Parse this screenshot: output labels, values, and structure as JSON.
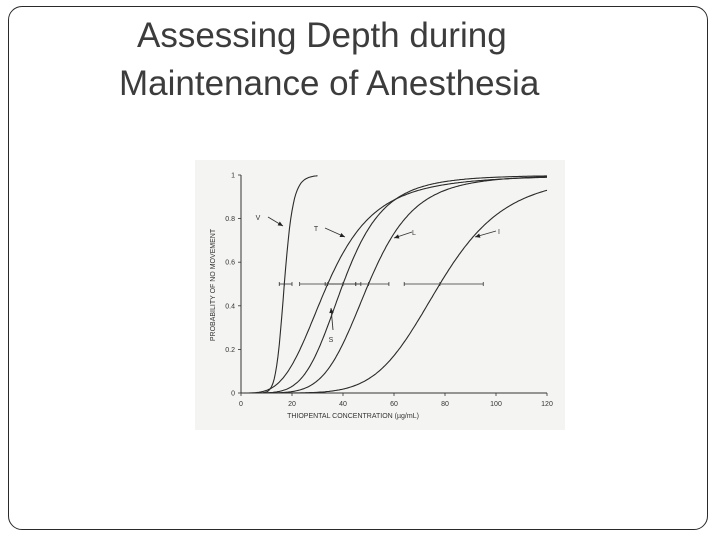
{
  "slide": {
    "title_line1": "Assessing Depth during",
    "title_line2": "Maintenance of Anesthesia"
  },
  "chart_data": {
    "type": "line",
    "title": "",
    "xlabel": "THIOPENTAL CONCENTRATION (µg/mL)",
    "ylabel": "PROBABILITY OF NO MOVEMENT",
    "xlim": [
      0,
      120
    ],
    "ylim": [
      0,
      1
    ],
    "x_ticks": [
      "0",
      "20",
      "40",
      "60",
      "80",
      "100",
      "120"
    ],
    "y_ticks": [
      "0",
      "0.2",
      "0.4",
      "0.6",
      "0.8",
      "1"
    ],
    "grid": false,
    "series": [
      {
        "name": "V",
        "ec50": 17,
        "hill": 10,
        "ci": [
          15,
          20
        ],
        "x": [
          5,
          10,
          13,
          15,
          17,
          19,
          21,
          25,
          30
        ],
        "y": [
          0.0,
          0.01,
          0.07,
          0.22,
          0.5,
          0.76,
          0.9,
          0.98,
          1.0
        ]
      },
      {
        "name": "T",
        "ec50": 34,
        "hill": 3.6,
        "ci": [
          23,
          45
        ],
        "x": [
          5,
          10,
          20,
          30,
          34,
          40,
          50,
          60,
          80,
          100,
          120
        ],
        "y": [
          0.0,
          0.01,
          0.13,
          0.39,
          0.5,
          0.64,
          0.8,
          0.88,
          0.95,
          0.97,
          0.98
        ]
      },
      {
        "name": "S",
        "ec50": 40,
        "hill": 5,
        "ci": [
          33,
          47
        ],
        "x": [
          10,
          20,
          30,
          40,
          50,
          60,
          80,
          100,
          120
        ],
        "y": [
          0.0,
          0.03,
          0.19,
          0.5,
          0.75,
          0.88,
          0.97,
          0.99,
          0.99
        ]
      },
      {
        "name": "L",
        "ec50": 50,
        "hill": 5.5,
        "ci": [
          45,
          58
        ],
        "x": [
          20,
          30,
          40,
          50,
          60,
          70,
          80,
          100,
          120
        ],
        "y": [
          0.01,
          0.06,
          0.23,
          0.5,
          0.73,
          0.86,
          0.93,
          0.98,
          0.99
        ]
      },
      {
        "name": "I",
        "ec50": 78,
        "hill": 6,
        "ci": [
          64,
          95
        ],
        "x": [
          30,
          40,
          50,
          60,
          70,
          78,
          90,
          100,
          110,
          120
        ],
        "y": [
          0.0,
          0.02,
          0.06,
          0.17,
          0.35,
          0.5,
          0.7,
          0.81,
          0.88,
          0.93
        ]
      }
    ],
    "annotations": [
      "V",
      "T",
      "L",
      "I",
      "S"
    ]
  }
}
